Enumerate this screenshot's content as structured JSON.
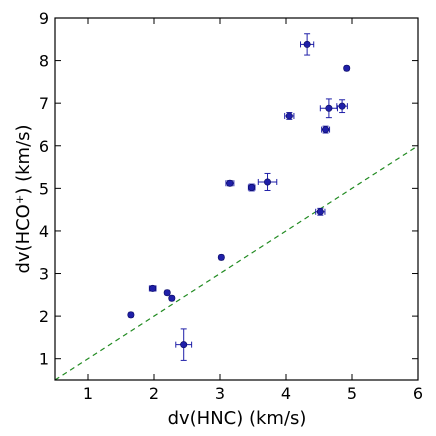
{
  "chart_data": {
    "type": "scatter",
    "xlabel": "dv(HNC) (km/s)",
    "ylabel": "dv(HCO⁺) (km/s)",
    "xlim": [
      0.5,
      6
    ],
    "ylim": [
      0.5,
      9
    ],
    "xticks": [
      1,
      2,
      3,
      4,
      5,
      6
    ],
    "yticks": [
      1,
      2,
      3,
      4,
      5,
      6,
      7,
      8,
      9
    ],
    "grid": false,
    "reference_line": {
      "style": "dashed",
      "color": "#228b22",
      "x": [
        0.5,
        6
      ],
      "y": [
        0.5,
        6
      ]
    },
    "marker_color": "#1f1fa8",
    "points": [
      {
        "x": 1.65,
        "y": 2.03,
        "xerr": 0.03,
        "yerr": 0.04
      },
      {
        "x": 1.98,
        "y": 2.65,
        "xerr": 0.05,
        "yerr": 0.06
      },
      {
        "x": 2.2,
        "y": 2.55,
        "xerr": 0.03,
        "yerr": 0.04
      },
      {
        "x": 2.27,
        "y": 2.42,
        "xerr": 0.03,
        "yerr": 0.04
      },
      {
        "x": 2.45,
        "y": 1.33,
        "xerr": 0.12,
        "yerr": 0.37
      },
      {
        "x": 3.02,
        "y": 3.38,
        "xerr": 0.03,
        "yerr": 0.04
      },
      {
        "x": 3.15,
        "y": 5.12,
        "xerr": 0.06,
        "yerr": 0.06
      },
      {
        "x": 3.48,
        "y": 5.02,
        "xerr": 0.05,
        "yerr": 0.08
      },
      {
        "x": 3.72,
        "y": 5.15,
        "xerr": 0.14,
        "yerr": 0.2
      },
      {
        "x": 4.05,
        "y": 6.7,
        "xerr": 0.07,
        "yerr": 0.08
      },
      {
        "x": 4.32,
        "y": 8.38,
        "xerr": 0.1,
        "yerr": 0.25
      },
      {
        "x": 4.52,
        "y": 4.45,
        "xerr": 0.07,
        "yerr": 0.08
      },
      {
        "x": 4.6,
        "y": 6.38,
        "xerr": 0.06,
        "yerr": 0.08
      },
      {
        "x": 4.65,
        "y": 6.88,
        "xerr": 0.13,
        "yerr": 0.22
      },
      {
        "x": 4.85,
        "y": 6.93,
        "xerr": 0.08,
        "yerr": 0.15
      },
      {
        "x": 4.92,
        "y": 7.82,
        "xerr": 0.03,
        "yerr": 0.04
      }
    ]
  }
}
